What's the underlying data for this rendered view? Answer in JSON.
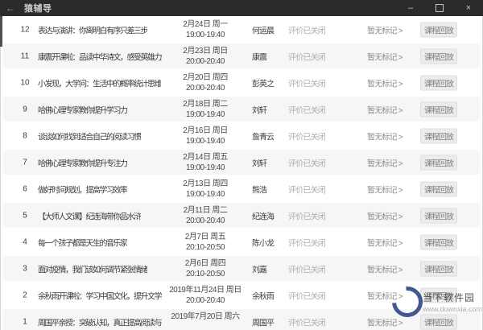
{
  "window": {
    "title": "猿辅导",
    "back_icon": "←",
    "controls": {
      "minimize": "–",
      "maximize": "maximize-box",
      "close": "×"
    }
  },
  "colors": {
    "titlebar_bg": "#2b2b2b",
    "titlebar_text": "#cfcfcf",
    "content_bg": "#ffffff",
    "alt_row_bg": "#f6f6f6",
    "primary_text": "#3c3c3c",
    "muted_text": "#adadad",
    "button_bg": "#ececec",
    "watermark_blue": "#324a85"
  },
  "table": {
    "common": {
      "eval": "评价已关闭",
      "mark": "暂无标记 >",
      "action": "课程回放"
    },
    "rows": [
      {
        "num": "12",
        "title": "表达与演讲：你离明白有序只差三步",
        "date": "2月24日 周一",
        "time": "19:00-19:40",
        "teacher": "何运晨"
      },
      {
        "num": "11",
        "title": "康震开课啦：品读中华诗文，感受英雄力量",
        "date": "2月23日 周日",
        "time": "20:00-20:40",
        "teacher": "康震"
      },
      {
        "num": "10",
        "title": "小发现，大学问：生活中的概率统计思维",
        "date": "2月20日 周四",
        "time": "20:00-20:40",
        "teacher": "彭英之"
      },
      {
        "num": "9",
        "title": "哈佛心理专家教你提升学习力",
        "date": "2月18日 周二",
        "time": "19:00-19:40",
        "teacher": "刘轩"
      },
      {
        "num": "8",
        "title": "谈谈如何找到适合自己的阅读习惯",
        "date": "2月16日 周日",
        "time": "19:00-19:40",
        "teacher": "詹青云"
      },
      {
        "num": "7",
        "title": "哈佛心理专家教你提升专注力",
        "date": "2月14日 周五",
        "time": "19:00-19:40",
        "teacher": "刘轩"
      },
      {
        "num": "6",
        "title": "做好时间规划，提高学习效率",
        "date": "2月13日 周四",
        "time": "19:00-19:40",
        "teacher": "熊浩"
      },
      {
        "num": "5",
        "title": "【大师人文课】纪连海带你品水浒",
        "date": "2月11日 周二",
        "time": "20:00-20:40",
        "teacher": "纪连海"
      },
      {
        "num": "4",
        "title": "每一个孩子都是天生的音乐家",
        "date": "2月7日 周五",
        "time": "20:10-20:50",
        "teacher": "陈小龙"
      },
      {
        "num": "3",
        "title": "面对疫情，我们该如何调节紧张情绪",
        "date": "2月6日 周四",
        "time": "20:10-20:50",
        "teacher": "刘嘉"
      },
      {
        "num": "2",
        "title": "余秋雨开课啦：学习中国文化，提升文学素养",
        "date": "2019年11月24日 周日",
        "time": "20:00-20:40",
        "teacher": "余秋雨"
      },
      {
        "num": "1",
        "title": "周国平亲授：突破认知，真正提高阅读与写作能力",
        "date": "2019年7月20日 周六",
        "time": "",
        "teacher": "周国平"
      }
    ]
  },
  "watermark": {
    "site": "当下软件园",
    "url": "www.downxia.com"
  }
}
